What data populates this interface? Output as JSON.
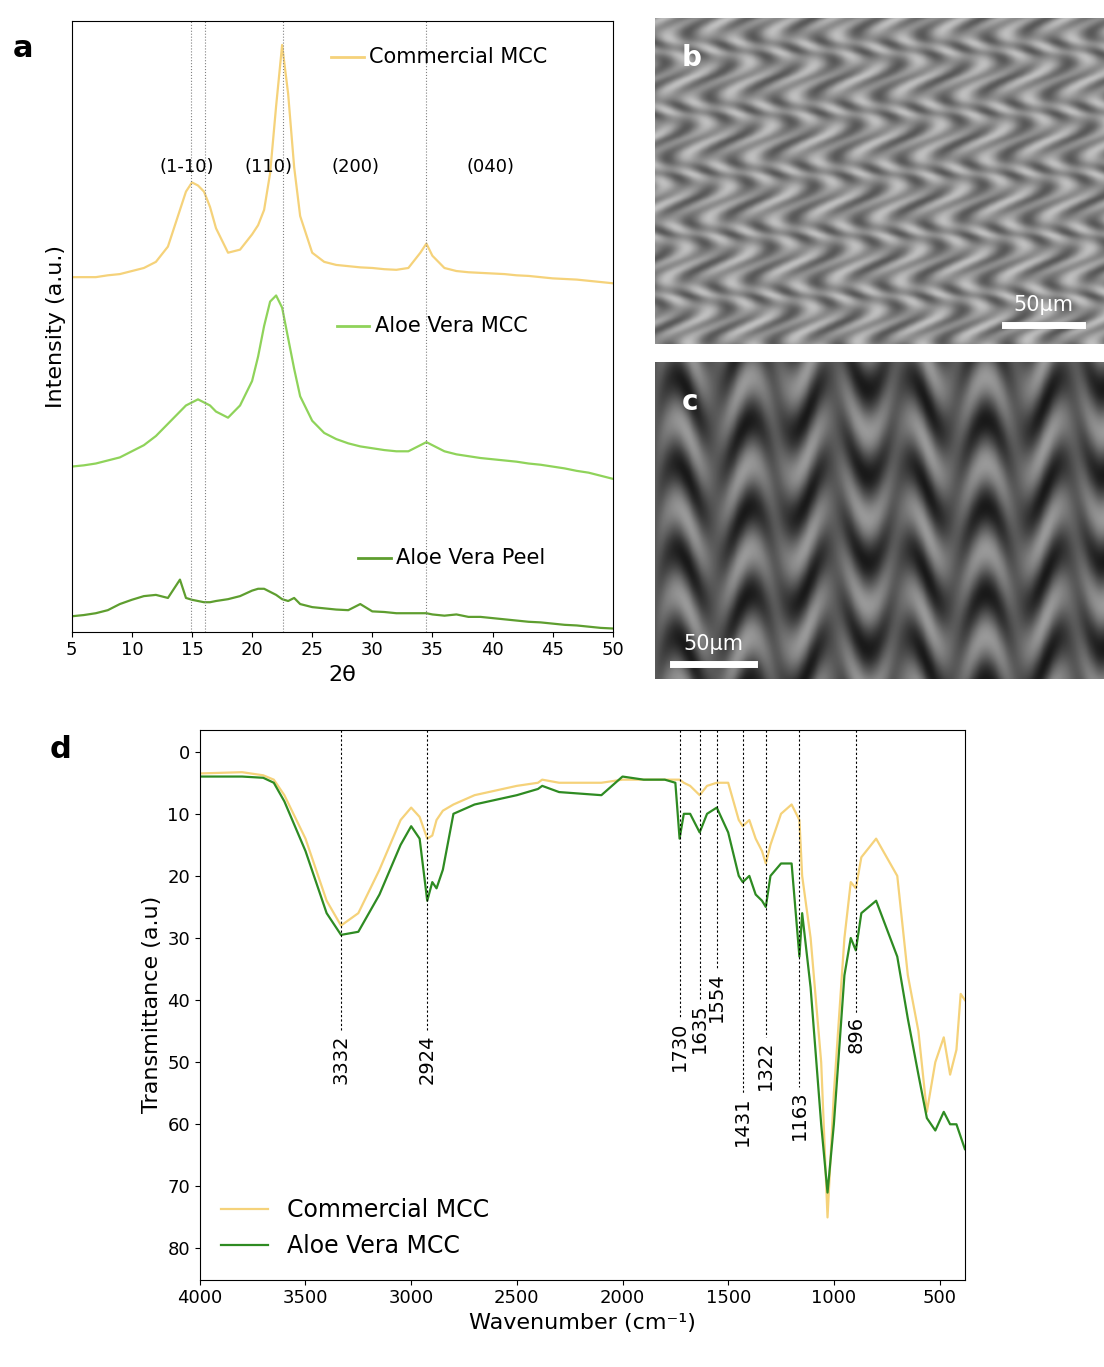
{
  "chart_data": [
    {
      "type": "line",
      "title": "a",
      "x_label": "2θ",
      "y_label": "Intensity (a.u.)",
      "xlim": [
        5,
        50
      ],
      "xticks": [
        5,
        10,
        15,
        20,
        25,
        30,
        35,
        40,
        45,
        50
      ],
      "ylim": [
        0,
        100
      ],
      "tick_labels": "x",
      "x": [
        5,
        6,
        7,
        8,
        9,
        10,
        11,
        12,
        13,
        14,
        14.5,
        15,
        15.5,
        16,
        16.5,
        17,
        18,
        19,
        20,
        20.5,
        21,
        21.5,
        22,
        22.5,
        23,
        23.5,
        24,
        25,
        26,
        27,
        28,
        29,
        30,
        31,
        32,
        33,
        34,
        34.5,
        35,
        36,
        37,
        38,
        39,
        40,
        41,
        42,
        43,
        44,
        45,
        46,
        47,
        48,
        49,
        50
      ],
      "reference_lines": [
        14.9,
        16.1,
        22.6,
        34.5
      ],
      "annotations": [
        {
          "text": "(1-10)",
          "x": 14.6,
          "y": 76
        },
        {
          "text": "(110)",
          "x": 21.4,
          "y": 76
        },
        {
          "text": "(200)",
          "x": 28.6,
          "y": 76
        },
        {
          "text": "(040)",
          "x": 39.8,
          "y": 76
        }
      ],
      "series": [
        {
          "name": "Commercial MCC",
          "color": "#f5d27a",
          "values": [
            58,
            58,
            58,
            58.3,
            58.5,
            59,
            59.5,
            60.5,
            63,
            69,
            72,
            73.5,
            73,
            72,
            69.5,
            66,
            62,
            62.5,
            65,
            66.5,
            69,
            75,
            86,
            96,
            88,
            76,
            68,
            62,
            60.5,
            60,
            59.8,
            59.6,
            59.5,
            59.3,
            59.2,
            59.5,
            62,
            63.5,
            61.5,
            59.5,
            59,
            58.8,
            58.7,
            58.6,
            58.5,
            58.3,
            58.2,
            58,
            57.8,
            57.7,
            57.6,
            57.4,
            57.2,
            57
          ]
        },
        {
          "name": "Aloe Vera MCC",
          "color": "#8fd35a",
          "values": [
            27,
            27.2,
            27.5,
            28,
            28.5,
            29.5,
            30.5,
            32,
            34,
            36,
            37,
            37.5,
            38,
            37.5,
            37,
            36,
            35,
            37,
            41,
            45,
            50,
            54,
            55,
            53,
            48,
            43,
            38.5,
            34.5,
            32.5,
            31.5,
            30.8,
            30.3,
            30,
            29.7,
            29.5,
            29.5,
            30.5,
            31,
            30.5,
            29.5,
            29,
            28.7,
            28.4,
            28.2,
            28,
            27.8,
            27.5,
            27.3,
            27,
            26.7,
            26.3,
            26,
            25.5,
            25
          ]
        },
        {
          "name": "Aloe Vera Peel",
          "color": "#5e9e2f",
          "values": [
            2.5,
            2.7,
            3,
            3.5,
            4.5,
            5.2,
            5.8,
            6,
            5.5,
            8.5,
            5.5,
            5.2,
            5,
            4.8,
            4.8,
            5,
            5.3,
            5.8,
            6.7,
            7,
            7,
            6.5,
            6,
            5.3,
            5,
            5.5,
            4.5,
            4,
            3.8,
            3.6,
            3.5,
            4.5,
            3.3,
            3.2,
            3,
            3,
            3,
            3,
            2.8,
            2.6,
            2.8,
            2.4,
            2.4,
            2.2,
            2,
            1.8,
            1.6,
            1.5,
            1.3,
            1.1,
            1,
            0.8,
            0.6,
            0.5
          ]
        }
      ]
    },
    {
      "type": "image",
      "title": "b",
      "scale_bar": "50µm"
    },
    {
      "type": "image",
      "title": "c",
      "scale_bar": "50µm"
    },
    {
      "type": "line",
      "title": "d",
      "x_label": "Wavenumber (cm⁻¹)",
      "y_label": "Transmittance (a.u)",
      "xlim": [
        4000,
        380
      ],
      "xticks": [
        4000,
        3500,
        3000,
        2500,
        2000,
        1500,
        1000,
        500
      ],
      "ylim": [
        85,
        -3.5
      ],
      "yticks": [
        0,
        10,
        20,
        30,
        40,
        50,
        60,
        70,
        80
      ],
      "legend": "lower left",
      "x": [
        4000,
        3800,
        3700,
        3650,
        3600,
        3500,
        3400,
        3332,
        3250,
        3150,
        3050,
        3000,
        2960,
        2924,
        2900,
        2880,
        2850,
        2800,
        2700,
        2500,
        2400,
        2380,
        2300,
        2100,
        2000,
        1900,
        1800,
        1750,
        1730,
        1710,
        1680,
        1635,
        1600,
        1554,
        1500,
        1450,
        1431,
        1400,
        1370,
        1340,
        1322,
        1300,
        1250,
        1200,
        1163,
        1150,
        1110,
        1060,
        1030,
        1000,
        950,
        920,
        896,
        870,
        800,
        700,
        650,
        600,
        560,
        520,
        480,
        450,
        420,
        400,
        380
      ],
      "annotations": [
        {
          "text": "3332",
          "x": 3332,
          "y": 45
        },
        {
          "text": "2924",
          "x": 2924,
          "y": 45
        },
        {
          "text": "1730",
          "x": 1730,
          "y": 43
        },
        {
          "text": "1635",
          "x": 1635,
          "y": 40
        },
        {
          "text": "1554",
          "x": 1554,
          "y": 35
        },
        {
          "text": "1431",
          "x": 1431,
          "y": 55
        },
        {
          "text": "1322",
          "x": 1322,
          "y": 46
        },
        {
          "text": "1163",
          "x": 1163,
          "y": 54
        },
        {
          "text": "896",
          "x": 896,
          "y": 42
        }
      ],
      "series": [
        {
          "name": "Commercial MCC",
          "color": "#f5d27a",
          "values": [
            3.5,
            3.3,
            3.8,
            4.5,
            7,
            14,
            24,
            28,
            26,
            19,
            11,
            9,
            10.5,
            14,
            13.5,
            11,
            9.5,
            8.5,
            7,
            5.5,
            5,
            4.5,
            5,
            5,
            4.5,
            4.5,
            4.5,
            4.5,
            4.5,
            5,
            5.5,
            7,
            5.5,
            5,
            5,
            11,
            12,
            11,
            14,
            16,
            18,
            15,
            10,
            8.5,
            11,
            20,
            30,
            50,
            75,
            55,
            30,
            21,
            22,
            17,
            14,
            20,
            36,
            45,
            58,
            50,
            46,
            52,
            48,
            39,
            40
          ]
        },
        {
          "name": "Aloe Vera MCC",
          "color": "#2e8b22",
          "values": [
            4,
            4,
            4.2,
            5,
            8,
            16,
            26,
            29.5,
            29,
            23,
            15,
            12,
            14,
            24,
            21,
            22,
            19,
            10,
            8.5,
            7,
            6,
            5.5,
            6.5,
            7,
            4,
            4.5,
            4.5,
            5,
            14,
            10,
            10,
            13,
            10,
            9,
            13,
            20,
            21,
            20,
            23,
            24,
            25,
            20,
            18,
            18,
            33,
            26,
            38,
            60,
            71,
            60,
            36,
            30,
            32,
            26,
            24,
            33,
            43,
            52,
            59,
            61,
            58,
            60,
            60,
            62,
            64
          ]
        }
      ]
    }
  ]
}
